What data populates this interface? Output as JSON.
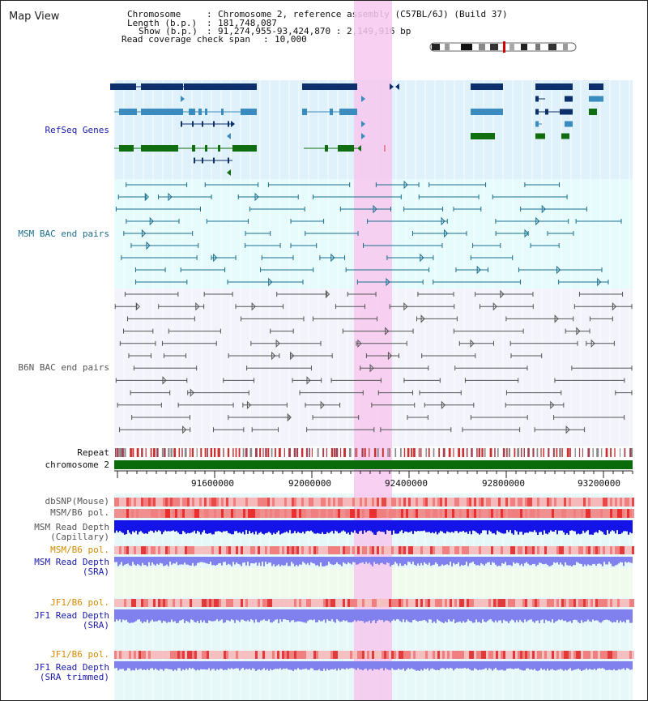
{
  "title": "Map View",
  "info": {
    "chromosome_label": "Chromosome",
    "chromosome_value": "Chromosome 2, reference assembly (C57BL/6J) (Build 37)",
    "length_label": "Length (b.p.)",
    "length_value": "181,748,087",
    "show_label": "Show (b.p.)",
    "show_value": "91,274,955-93,424,870 : 2,149,916 bp",
    "coverage_label": "Read coverage check span",
    "coverage_value": "10,000"
  },
  "tracks": {
    "refseq": "RefSeq Genes",
    "msm_bac": "MSM BAC end pairs",
    "b6n_bac": "B6N BAC end pairs",
    "repeat": "Repeat",
    "chromosome": "chromosome 2",
    "dbsnp": "dbSNP(Mouse)",
    "msm_pol": "MSM/B6 pol.",
    "msm_depth_cap_1": "MSM Read Depth",
    "msm_depth_cap_2": "(Capillary)",
    "msm_pol_sra": "MSM/B6 pol.",
    "msm_depth_sra_1": "MSM Read Depth",
    "msm_depth_sra_2": "(SRA)",
    "jf1_pol": "JF1/B6 pol.",
    "jf1_depth_1": "JF1 Read Depth",
    "jf1_depth_2": "(SRA)",
    "jf1_pol_trim": "JF1/B6 pol.",
    "jf1_trim_1": "JF1 Read Depth",
    "jf1_trim_2": "(SRA trimmed)"
  },
  "axis": {
    "ticks": [
      "91600000",
      "92000000",
      "92400000",
      "92800000",
      "93200000"
    ]
  },
  "colors": {
    "refseq_bg": "#dff1fa",
    "msm_bg": "#e6fbfb",
    "b6n_bg": "#f3f3fb",
    "highlight": "#f7c8ef",
    "gene_dark": "#0d2f6b",
    "gene_mid": "#3a8bbf",
    "gene_green": "#0f6e0f",
    "msm_line": "#1c6e8c",
    "b6n_line": "#555555",
    "chrom_bar": "#0a6b0a",
    "depth_blue": "#1414e8",
    "depth_light": "#8080ee",
    "label_blue": "#1a1aa8",
    "label_orange": "#d68a00",
    "label_gray": "#555555"
  }
}
